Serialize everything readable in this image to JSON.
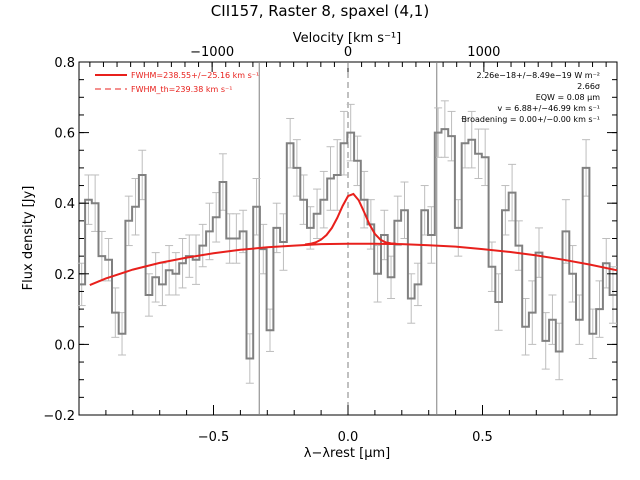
{
  "chart_data": {
    "type": "line",
    "title": "CII157, Raster 8, spaxel (4,1)",
    "xlabel": "λ−λrest [μm]",
    "ylabel": "Flux density [Jy]",
    "top_axis_label": "Velocity [km s⁻¹]",
    "xlim": [
      -1.0,
      1.0
    ],
    "ylim": [
      -0.2,
      0.8
    ],
    "x_ticks": [
      -0.5,
      0.0,
      0.5
    ],
    "x_tick_labels": [
      "−0.5",
      "0.0",
      "0.5"
    ],
    "y_ticks": [
      -0.2,
      0.0,
      0.2,
      0.4,
      0.6,
      0.8
    ],
    "y_tick_labels": [
      "−0.2",
      "0.0",
      "0.2",
      "0.4",
      "0.6",
      "0.8"
    ],
    "top_ticks_velocity": [
      -1000,
      0,
      1000
    ],
    "top_tick_labels": [
      "−1000",
      "0",
      "1000"
    ],
    "velocity_per_micron": 1980,
    "legend": [
      {
        "label": "FWHM=238.55+/−25.16 km s⁻¹",
        "style": "solid",
        "color": "#e8201c"
      },
      {
        "label": "FWHM_th=239.38 km s⁻¹",
        "style": "dashed",
        "color": "#e8201c"
      }
    ],
    "annotations": [
      "2.26e−18+/−8.49e−19 W m⁻²",
      "2.66σ",
      "EQW = 0.08 μm",
      "v = 6.88+/−46.99 km s⁻¹",
      "Broadening = 0.00+/−0.00 km s⁻¹"
    ],
    "vertical_lines": [
      -0.33,
      0.33
    ],
    "zero_line_dashed": 0.0,
    "series": [
      {
        "style": "step",
        "color": "#808080",
        "x": [
          -0.99,
          -0.965,
          -0.94,
          -0.915,
          -0.89,
          -0.865,
          -0.84,
          -0.815,
          -0.79,
          -0.765,
          -0.74,
          -0.715,
          -0.69,
          -0.665,
          -0.64,
          -0.615,
          -0.59,
          -0.565,
          -0.54,
          -0.515,
          -0.49,
          -0.465,
          -0.44,
          -0.415,
          -0.39,
          -0.365,
          -0.34,
          -0.315,
          -0.29,
          -0.265,
          -0.24,
          -0.215,
          -0.19,
          -0.165,
          -0.14,
          -0.115,
          -0.09,
          -0.065,
          -0.04,
          -0.015,
          0.01,
          0.035,
          0.06,
          0.085,
          0.11,
          0.135,
          0.16,
          0.185,
          0.21,
          0.235,
          0.26,
          0.285,
          0.31,
          0.335,
          0.36,
          0.385,
          0.41,
          0.435,
          0.46,
          0.485,
          0.51,
          0.535,
          0.56,
          0.585,
          0.61,
          0.635,
          0.66,
          0.685,
          0.71,
          0.735,
          0.76,
          0.785,
          0.81,
          0.835,
          0.86,
          0.885,
          0.91,
          0.935,
          0.96,
          0.985
        ],
        "values": [
          0.17,
          0.41,
          0.4,
          0.25,
          0.24,
          0.09,
          0.03,
          0.35,
          0.39,
          0.48,
          0.14,
          0.19,
          0.17,
          0.21,
          0.2,
          0.23,
          0.25,
          0.24,
          0.28,
          0.32,
          0.36,
          0.46,
          0.3,
          0.3,
          0.32,
          -0.04,
          0.39,
          0.27,
          0.04,
          0.33,
          0.29,
          0.57,
          0.5,
          0.41,
          0.33,
          0.37,
          0.41,
          0.47,
          0.48,
          0.57,
          0.6,
          0.52,
          0.41,
          0.34,
          0.2,
          0.31,
          0.19,
          0.35,
          0.38,
          0.13,
          0.17,
          0.38,
          0.31,
          0.6,
          0.61,
          0.59,
          0.33,
          0.57,
          0.58,
          0.54,
          0.53,
          0.22,
          0.12,
          0.38,
          0.43,
          0.28,
          0.05,
          0.09,
          0.26,
          0.01,
          0.07,
          -0.02,
          0.32,
          0.2,
          0.07,
          0.5,
          0.03,
          0.1,
          0.23,
          0.14
        ],
        "errors": [
          0.06,
          0.07,
          0.08,
          0.07,
          0.06,
          0.07,
          0.06,
          0.07,
          0.08,
          0.07,
          0.06,
          0.07,
          0.06,
          0.07,
          0.06,
          0.07,
          0.06,
          0.07,
          0.06,
          0.08,
          0.07,
          0.08,
          0.07,
          0.07,
          0.06,
          0.07,
          0.08,
          0.07,
          0.06,
          0.07,
          0.08,
          0.07,
          0.08,
          0.07,
          0.06,
          0.07,
          0.08,
          0.09,
          0.1,
          0.09,
          0.08,
          0.07,
          0.08,
          0.07,
          0.08,
          0.07,
          0.06,
          0.07,
          0.08,
          0.07,
          0.06,
          0.07,
          0.08,
          0.07,
          0.08,
          0.07,
          0.08,
          0.07,
          0.08,
          0.07,
          0.08,
          0.07,
          0.08,
          0.07,
          0.08,
          0.07,
          0.08,
          0.09,
          0.07,
          0.08,
          0.07,
          0.08,
          0.09,
          0.08,
          0.07,
          0.08,
          0.07,
          0.08,
          0.07,
          0.08
        ]
      },
      {
        "style": "line",
        "color": "#e8201c",
        "x": [
          -0.96,
          -0.9,
          -0.8,
          -0.7,
          -0.6,
          -0.5,
          -0.4,
          -0.3,
          -0.2,
          -0.1,
          0.0,
          0.1,
          0.2,
          0.3,
          0.4,
          0.5,
          0.6,
          0.7,
          0.8,
          0.9,
          1.0
        ],
        "values": [
          0.168,
          0.187,
          0.212,
          0.231,
          0.246,
          0.258,
          0.268,
          0.275,
          0.28,
          0.284,
          0.285,
          0.285,
          0.284,
          0.281,
          0.277,
          0.27,
          0.262,
          0.252,
          0.24,
          0.226,
          0.21
        ]
      },
      {
        "style": "line",
        "color": "#e8201c",
        "x": [
          -0.16,
          -0.14,
          -0.12,
          -0.1,
          -0.08,
          -0.06,
          -0.04,
          -0.02,
          0.0,
          0.02,
          0.04,
          0.06,
          0.08,
          0.1,
          0.12,
          0.14,
          0.16,
          0.18
        ],
        "values": [
          0.283,
          0.285,
          0.289,
          0.297,
          0.31,
          0.33,
          0.358,
          0.392,
          0.42,
          0.426,
          0.408,
          0.375,
          0.34,
          0.313,
          0.297,
          0.289,
          0.286,
          0.285
        ]
      }
    ]
  }
}
